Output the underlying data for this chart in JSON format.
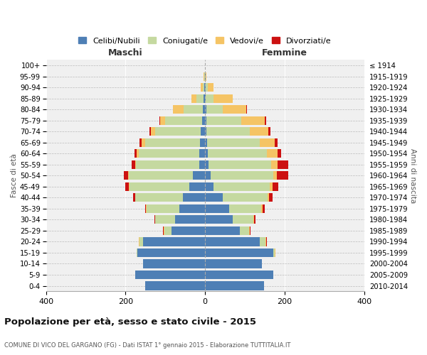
{
  "age_groups": [
    "100+",
    "95-99",
    "90-94",
    "85-89",
    "80-84",
    "75-79",
    "70-74",
    "65-69",
    "60-64",
    "55-59",
    "50-54",
    "45-49",
    "40-44",
    "35-39",
    "30-34",
    "25-29",
    "20-24",
    "15-19",
    "10-14",
    "5-9",
    "0-4"
  ],
  "birth_years": [
    "≤ 1914",
    "1915-1919",
    "1920-1924",
    "1925-1929",
    "1930-1934",
    "1935-1939",
    "1940-1944",
    "1945-1949",
    "1950-1954",
    "1955-1959",
    "1960-1964",
    "1965-1969",
    "1970-1974",
    "1975-1979",
    "1980-1984",
    "1985-1989",
    "1990-1994",
    "1995-1999",
    "2000-2004",
    "2005-2009",
    "2010-2014"
  ],
  "males": {
    "celibi": [
      0,
      1,
      2,
      4,
      5,
      8,
      10,
      12,
      14,
      15,
      30,
      40,
      55,
      65,
      75,
      85,
      155,
      170,
      155,
      175,
      150
    ],
    "coniugati": [
      0,
      1,
      4,
      18,
      48,
      92,
      115,
      138,
      152,
      158,
      162,
      150,
      120,
      82,
      50,
      18,
      10,
      2,
      0,
      0,
      0
    ],
    "vedovi": [
      0,
      1,
      4,
      12,
      28,
      12,
      12,
      10,
      6,
      3,
      2,
      2,
      1,
      1,
      1,
      1,
      1,
      0,
      0,
      0,
      0
    ],
    "divorziati": [
      0,
      0,
      0,
      0,
      0,
      3,
      3,
      4,
      5,
      8,
      10,
      8,
      5,
      3,
      2,
      1,
      0,
      0,
      0,
      0,
      0
    ]
  },
  "females": {
    "nubili": [
      0,
      1,
      2,
      2,
      3,
      4,
      4,
      5,
      7,
      9,
      14,
      22,
      45,
      60,
      70,
      88,
      138,
      172,
      143,
      172,
      148
    ],
    "coniugate": [
      0,
      1,
      5,
      20,
      42,
      88,
      108,
      132,
      148,
      158,
      158,
      140,
      112,
      82,
      52,
      22,
      14,
      4,
      0,
      0,
      0
    ],
    "vedove": [
      0,
      2,
      14,
      48,
      58,
      58,
      48,
      38,
      28,
      16,
      9,
      7,
      4,
      3,
      2,
      2,
      2,
      1,
      0,
      0,
      0
    ],
    "divorziate": [
      0,
      0,
      0,
      0,
      2,
      3,
      4,
      7,
      9,
      26,
      28,
      16,
      9,
      5,
      3,
      2,
      1,
      0,
      0,
      0,
      0
    ]
  },
  "color_celibi": "#4e7fb5",
  "color_coniugati": "#c5d9a0",
  "color_vedovi": "#f5c465",
  "color_divorziati": "#cc1111",
  "xlim": 400,
  "title": "Popolazione per età, sesso e stato civile - 2015",
  "subtitle": "COMUNE DI VICO DEL GARGANO (FG) - Dati ISTAT 1° gennaio 2015 - Elaborazione TUTTITALIA.IT",
  "ylabel_left": "Fasce di età",
  "ylabel_right": "Anni di nascita",
  "label_maschi": "Maschi",
  "label_femmine": "Femmine",
  "legend_labels": [
    "Celibi/Nubili",
    "Coniugati/e",
    "Vedovi/e",
    "Divorziati/e"
  ],
  "bg_color": "#f0f0f0"
}
